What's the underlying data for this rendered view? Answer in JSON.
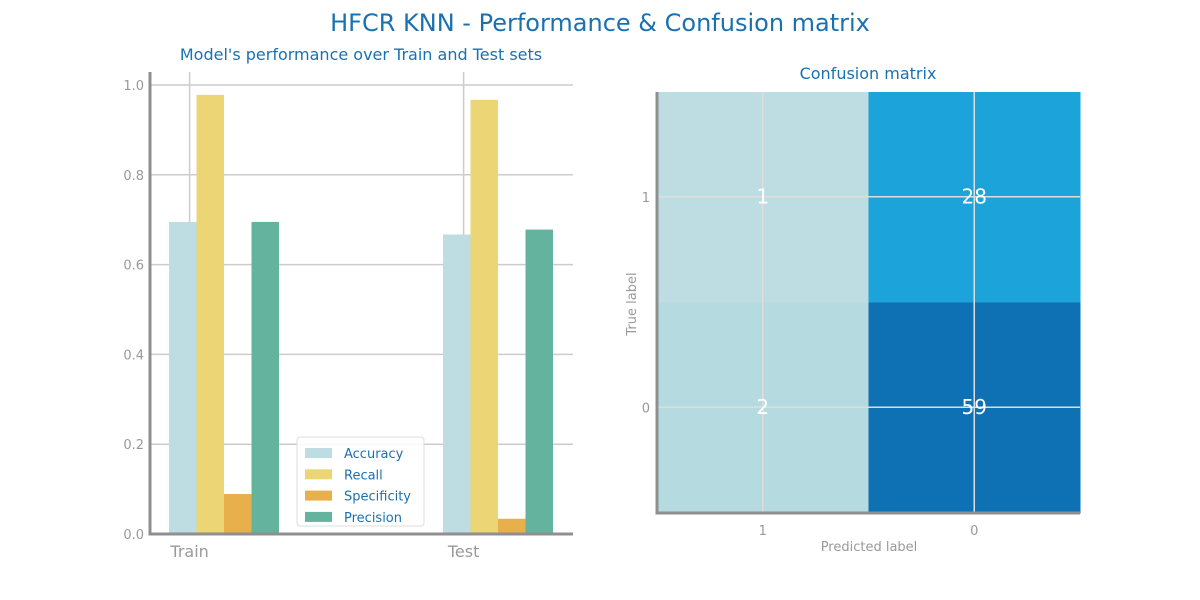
{
  "figure": {
    "title": "HFCR KNN - Performance & Confusion matrix",
    "title_color": "#1a71b0"
  },
  "chart_data": [
    {
      "type": "bar",
      "title": "Model's performance over Train and Test sets",
      "xlabel": "",
      "ylabel": "",
      "categories": [
        "Train",
        "Test"
      ],
      "ylim": [
        0,
        1.0
      ],
      "yticks": [
        "0.0",
        "0.2",
        "0.4",
        "0.6",
        "0.8",
        "1.0"
      ],
      "grid": true,
      "legend_position": "lower-center",
      "series": [
        {
          "name": "Accuracy",
          "color": "#bedde2",
          "values": [
            0.695,
            0.667
          ]
        },
        {
          "name": "Recall",
          "color": "#ebd574",
          "values": [
            0.978,
            0.967
          ]
        },
        {
          "name": "Specificity",
          "color": "#e8af4d",
          "values": [
            0.089,
            0.034
          ]
        },
        {
          "name": "Precision",
          "color": "#64b39f",
          "values": [
            0.695,
            0.678
          ]
        }
      ]
    },
    {
      "type": "heatmap",
      "title": "Confusion matrix",
      "xlabel": "Predicted label",
      "ylabel": "True label",
      "x_categories": [
        "1",
        "0"
      ],
      "y_categories": [
        "1",
        "0"
      ],
      "values": [
        [
          1,
          28
        ],
        [
          2,
          59
        ]
      ],
      "cell_colors": [
        [
          "#bedde2",
          "#1ba3da"
        ],
        [
          "#b5dadf",
          "#0e71b4"
        ]
      ]
    }
  ]
}
